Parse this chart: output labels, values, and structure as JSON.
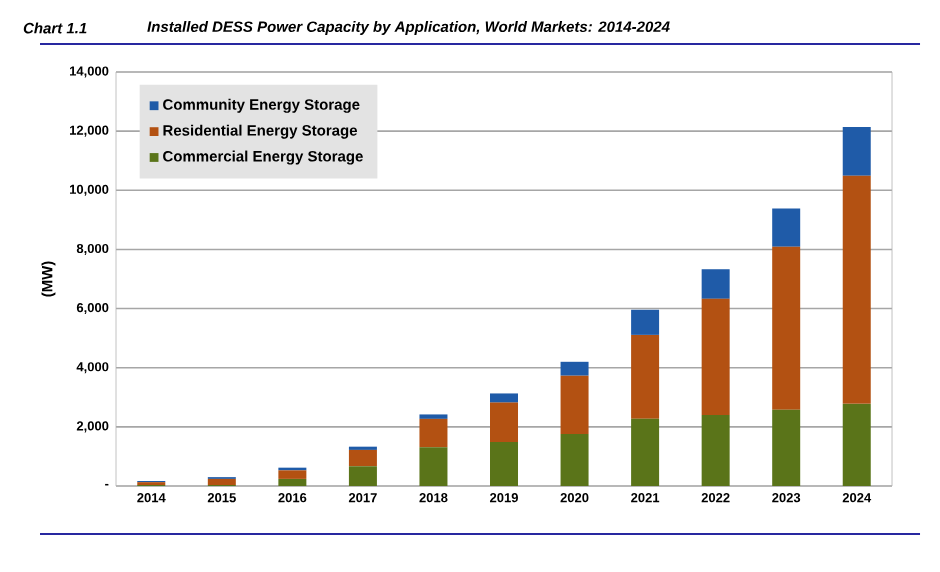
{
  "chart_data": {
    "type": "bar",
    "stacked": true,
    "title": "Installed DESS Power Capacity by Application, World Markets: 2014-2024",
    "annotations": [
      "Chart 1.1"
    ],
    "ylabel": "(MW)",
    "categories": [
      "2014",
      "2015",
      "2016",
      "2017",
      "2018",
      "2019",
      "2020",
      "2021",
      "2022",
      "2023",
      "2024"
    ],
    "series": [
      {
        "name": "Commercial Energy Storage",
        "color": "#5a7419",
        "values": [
          30,
          30,
          240,
          670,
          1310,
          1490,
          1760,
          2270,
          2400,
          2580,
          2780
        ]
      },
      {
        "name": "Residential Energy Storage",
        "color": "#b35112",
        "values": [
          100,
          210,
          290,
          550,
          960,
          1330,
          1970,
          2840,
          3930,
          5510,
          7710
        ]
      },
      {
        "name": "Community Energy Storage",
        "color": "#1f5ba8",
        "values": [
          40,
          60,
          90,
          110,
          150,
          310,
          470,
          850,
          1000,
          1290,
          1650
        ]
      }
    ],
    "ylim": [
      0,
      14000
    ],
    "yticks": [
      {
        "value": 0,
        "label": "-"
      },
      {
        "value": 2000,
        "label": "2,000"
      },
      {
        "value": 4000,
        "label": "4,000"
      },
      {
        "value": 6000,
        "label": "6,000"
      },
      {
        "value": 8000,
        "label": "8,000"
      },
      {
        "value": 10000,
        "label": "10,000"
      },
      {
        "value": 12000,
        "label": "12,000"
      },
      {
        "value": 14000,
        "label": "14,000"
      }
    ],
    "grid": "y",
    "legend": "top left"
  }
}
